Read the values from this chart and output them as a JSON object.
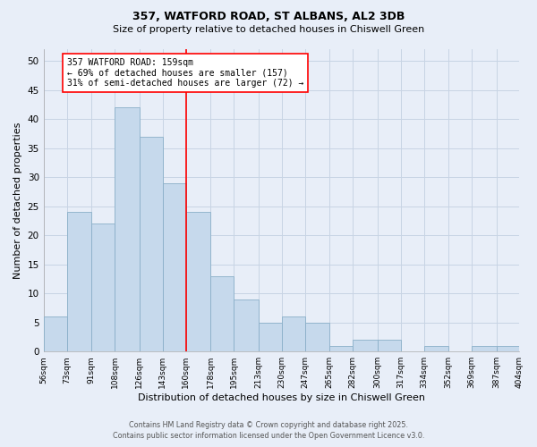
{
  "title1": "357, WATFORD ROAD, ST ALBANS, AL2 3DB",
  "title2": "Size of property relative to detached houses in Chiswell Green",
  "xlabel": "Distribution of detached houses by size in Chiswell Green",
  "ylabel": "Number of detached properties",
  "bin_labels": [
    "56sqm",
    "73sqm",
    "91sqm",
    "108sqm",
    "126sqm",
    "143sqm",
    "160sqm",
    "178sqm",
    "195sqm",
    "213sqm",
    "230sqm",
    "247sqm",
    "265sqm",
    "282sqm",
    "300sqm",
    "317sqm",
    "334sqm",
    "352sqm",
    "369sqm",
    "387sqm",
    "404sqm"
  ],
  "bin_edges": [
    56,
    73,
    91,
    108,
    126,
    143,
    160,
    178,
    195,
    213,
    230,
    247,
    265,
    282,
    300,
    317,
    334,
    352,
    369,
    387,
    404
  ],
  "bar_heights": [
    6,
    24,
    22,
    42,
    37,
    29,
    24,
    13,
    9,
    5,
    6,
    5,
    1,
    2,
    2,
    0,
    1,
    0,
    1,
    1
  ],
  "bar_color": "#c6d9ec",
  "bar_edge_color": "#8aafc8",
  "vline_x": 160,
  "vline_color": "red",
  "annotation_title": "357 WATFORD ROAD: 159sqm",
  "annotation_line1": "← 69% of detached houses are smaller (157)",
  "annotation_line2": "31% of semi-detached houses are larger (72) →",
  "annotation_box_color": "white",
  "annotation_box_edge": "red",
  "ylim": [
    0,
    52
  ],
  "yticks": [
    0,
    5,
    10,
    15,
    20,
    25,
    30,
    35,
    40,
    45,
    50
  ],
  "footer1": "Contains HM Land Registry data © Crown copyright and database right 2025.",
  "footer2": "Contains public sector information licensed under the Open Government Licence v3.0.",
  "bg_color": "#e8eef8",
  "grid_color": "#c8d4e4"
}
